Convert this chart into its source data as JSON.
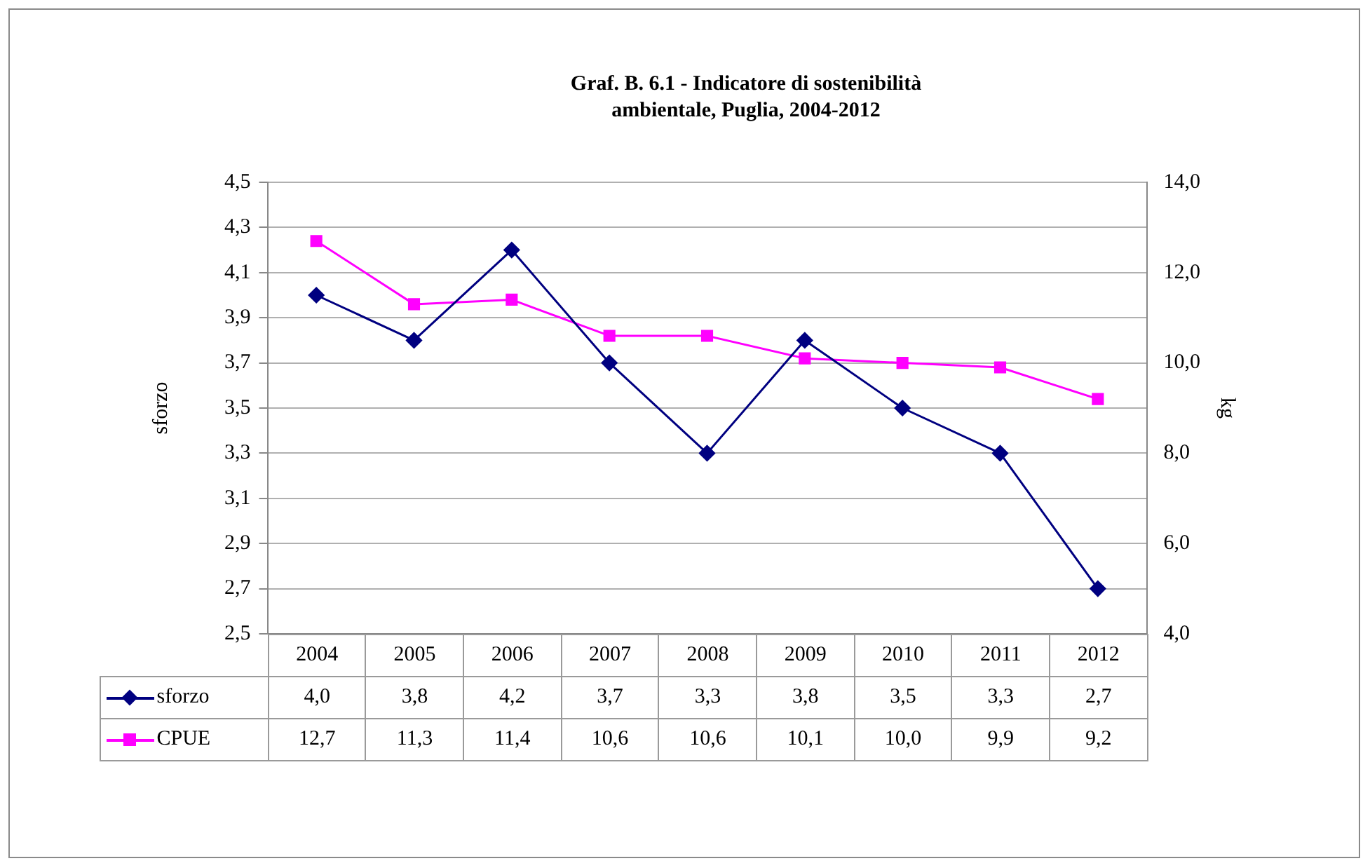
{
  "chart_data": {
    "type": "line",
    "title": "Graf. B. 6.1 - Indicatore di sostenibilità ambientale, Puglia, 2004-2012",
    "ylabel": "sforzo",
    "y2label": "kg",
    "categories": [
      "2004",
      "2005",
      "2006",
      "2007",
      "2008",
      "2009",
      "2010",
      "2011",
      "2012"
    ],
    "series": [
      {
        "name": "sforzo",
        "color": "#000080",
        "marker": "diamond",
        "values": [
          4.0,
          3.8,
          4.2,
          3.7,
          3.3,
          3.8,
          3.5,
          3.3,
          2.7
        ],
        "value_labels": [
          "4,0",
          "3,8",
          "4,2",
          "3,7",
          "3,3",
          "3,8",
          "3,5",
          "3,3",
          "2,7"
        ]
      },
      {
        "name": "CPUE",
        "color": "#ff00ff",
        "marker": "square",
        "axis": "y2",
        "values": [
          12.7,
          11.3,
          11.4,
          10.6,
          10.6,
          10.1,
          10.0,
          9.9,
          9.2
        ],
        "value_labels": [
          "12,7",
          "11,3",
          "11,4",
          "10,6",
          "10,6",
          "10,1",
          "10,0",
          "9,9",
          "9,2"
        ]
      }
    ],
    "ylim": [
      2.5,
      4.5
    ],
    "yticks": [
      {
        "value": 2.5,
        "label": "2,5"
      },
      {
        "value": 2.7,
        "label": "2,7"
      },
      {
        "value": 2.9,
        "label": "2,9"
      },
      {
        "value": 3.1,
        "label": "3,1"
      },
      {
        "value": 3.3,
        "label": "3,3"
      },
      {
        "value": 3.5,
        "label": "3,5"
      },
      {
        "value": 3.7,
        "label": "3,7"
      },
      {
        "value": 3.9,
        "label": "3,9"
      },
      {
        "value": 4.1,
        "label": "4,1"
      },
      {
        "value": 4.3,
        "label": "4,3"
      },
      {
        "value": 4.5,
        "label": "4,5"
      }
    ],
    "y2lim": [
      4.0,
      14.0
    ],
    "y2ticks": [
      {
        "value": 4.0,
        "label": "4,0"
      },
      {
        "value": 6.0,
        "label": "6,0"
      },
      {
        "value": 8.0,
        "label": "8,0"
      },
      {
        "value": 10.0,
        "label": "10,0"
      },
      {
        "value": 12.0,
        "label": "12,0"
      },
      {
        "value": 14.0,
        "label": "14,0"
      }
    ],
    "grid": "y",
    "legend": "bottom left",
    "line_style": "solid"
  }
}
